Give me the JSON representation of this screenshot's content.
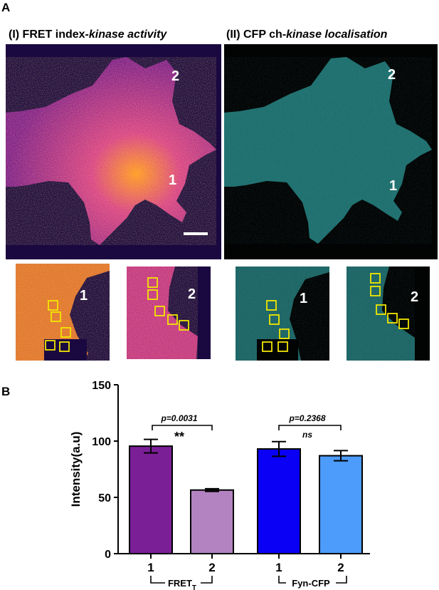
{
  "panel_a": {
    "letter": "A",
    "title_i_plain": "(I) FRET index-",
    "title_i_italic": "kinase activity",
    "title_ii_plain": "(II) CFP ch-",
    "title_ii_italic": "kinase localisation",
    "roi_label_1": "1",
    "roi_label_2": "2",
    "colors": {
      "fret_bg": "#1a0840",
      "fret_cell": "#a8248a",
      "fret_hot": "#ffb31c",
      "cfp_bg": "#020404",
      "cfp_cell": "#1f6f6f",
      "roi_box": "#f2e600"
    }
  },
  "panel_b": {
    "letter": "B",
    "pval_left": "p=0.0031",
    "sig_left": "**",
    "pval_right": "p=0.2368",
    "sig_right": "ns",
    "group_label_left": "FRET",
    "group_label_left_sub": "T",
    "group_label_right": "Fyn-CFP"
  },
  "chart_data": {
    "type": "bar",
    "categories": [
      "1",
      "2",
      "1",
      "2"
    ],
    "groups": [
      "FRET_T",
      "FRET_T",
      "Fyn-CFP",
      "Fyn-CFP"
    ],
    "values": [
      95.5,
      56.5,
      93,
      87
    ],
    "errors": [
      6,
      1.2,
      6.5,
      4.5
    ],
    "bar_colors": [
      "#7b1f97",
      "#b283c0",
      "#0a00f5",
      "#4d9bfa"
    ],
    "ylabel": "Intensity(a.u)",
    "xlabel": "",
    "ylim": [
      0,
      150
    ],
    "yticks": [
      0,
      50,
      100,
      150
    ],
    "grid": false
  }
}
